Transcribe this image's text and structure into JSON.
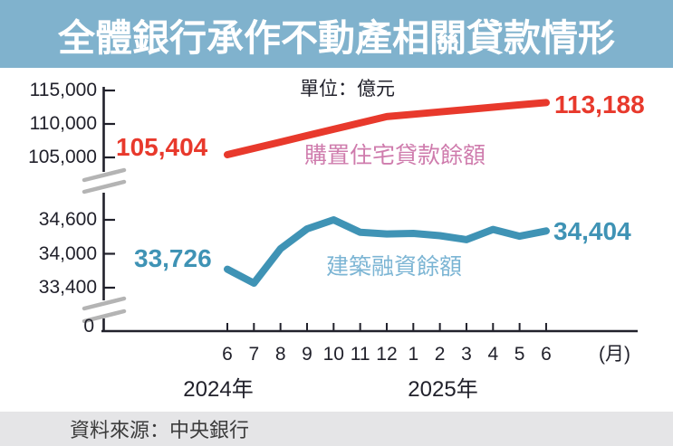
{
  "title": "全體銀行承作不動產相關貸款情形",
  "unit_label": "單位：億元",
  "source": "資料來源：中央銀行",
  "x_month_unit": "(月)",
  "years": [
    {
      "label": "2024年"
    },
    {
      "label": "2025年"
    }
  ],
  "colors": {
    "title_bg": "#80b2cd",
    "housing_line": "#e8392c",
    "housing_label": "#cf7cad",
    "construction_line": "#3f93b5",
    "construction_label": "#7cb5d4",
    "axis": "#21212b",
    "break_mark": "#b4b4b4",
    "source_bg": "#e5e5e7"
  },
  "chart_data": {
    "type": "line",
    "title": "全體銀行承作不動產相關貸款情形",
    "unit": "億元",
    "xlabel": "(月)",
    "categories": [
      "6",
      "7",
      "8",
      "9",
      "10",
      "11",
      "12",
      "1",
      "2",
      "3",
      "4",
      "5",
      "6"
    ],
    "year_of_category": [
      "2024",
      "2024",
      "2024",
      "2024",
      "2024",
      "2024",
      "2024",
      "2025",
      "2025",
      "2025",
      "2025",
      "2025",
      "2025"
    ],
    "series": [
      {
        "name": "購置住宅貸款餘額",
        "values": [
          105404,
          106350,
          107300,
          108250,
          109200,
          110150,
          111100,
          111450,
          111800,
          112150,
          112500,
          112850,
          113188
        ],
        "start_label": "105,404",
        "end_label": "113,188",
        "axis_segment": "upper"
      },
      {
        "name": "建築融資餘額",
        "values": [
          33726,
          33480,
          34090,
          34440,
          34600,
          34380,
          34350,
          34360,
          34320,
          34250,
          34430,
          34310,
          34404
        ],
        "start_label": "33,726",
        "end_label": "34,404",
        "axis_segment": "lower"
      }
    ],
    "y_axis": {
      "broken_axis": true,
      "origin_label": "0",
      "upper_segment": {
        "range": [
          105000,
          115000
        ],
        "ticks": [
          105000,
          110000,
          115000
        ],
        "tick_labels": [
          "105,000",
          "110,000",
          "115,000"
        ]
      },
      "lower_segment": {
        "range": [
          33400,
          34600
        ],
        "ticks": [
          33400,
          34000,
          34600
        ],
        "tick_labels": [
          "33,400",
          "34,000",
          "34,600"
        ]
      }
    },
    "grid": false,
    "legend_position": "inline-on-lines"
  }
}
